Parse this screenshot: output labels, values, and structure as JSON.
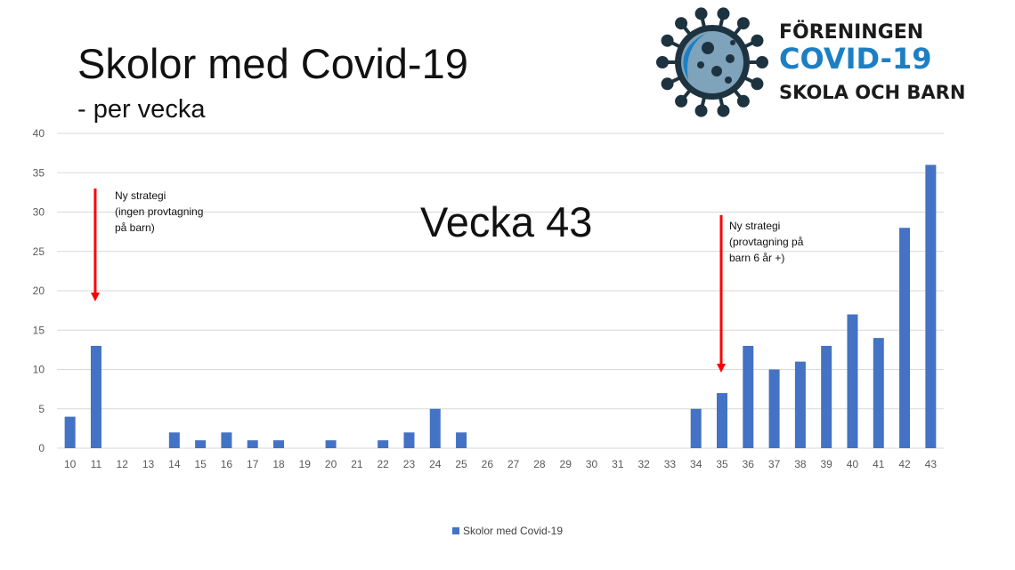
{
  "slide": {
    "title": "Skolor med Covid-19",
    "subtitle": "- per vecka",
    "big_label": "Vecka 43"
  },
  "logo": {
    "line1": "FÖRENINGEN",
    "line2": "COVID-19",
    "line3": "SKOLA OCH BARN"
  },
  "annotations": [
    {
      "lines": [
        "Ny strategi",
        "(ingen provtagning",
        "på barn)"
      ],
      "week": 11
    },
    {
      "lines": [
        "Ny strategi",
        "(provtagning på",
        "barn 6 år +)"
      ],
      "week": 35
    }
  ],
  "colors": {
    "bar": "#4472c4",
    "arrow": "#ff0000",
    "grid": "#d9d9d9"
  },
  "chart_data": {
    "type": "bar",
    "categories": [
      "10",
      "11",
      "12",
      "13",
      "14",
      "15",
      "16",
      "17",
      "18",
      "19",
      "20",
      "21",
      "22",
      "23",
      "24",
      "25",
      "26",
      "27",
      "28",
      "29",
      "30",
      "31",
      "32",
      "33",
      "34",
      "35",
      "36",
      "37",
      "38",
      "39",
      "40",
      "41",
      "42",
      "43"
    ],
    "series": [
      {
        "name": "Skolor med Covid-19",
        "values": [
          4,
          13,
          0,
          0,
          2,
          1,
          2,
          1,
          1,
          0,
          1,
          0,
          1,
          2,
          5,
          2,
          0,
          0,
          0,
          0,
          0,
          0,
          0,
          0,
          5,
          7,
          13,
          10,
          11,
          13,
          17,
          14,
          28,
          36
        ]
      }
    ],
    "ylim": [
      0,
      40
    ],
    "yticks": [
      0,
      5,
      10,
      15,
      20,
      25,
      30,
      35,
      40
    ],
    "grid": true,
    "legend": "bottom"
  }
}
